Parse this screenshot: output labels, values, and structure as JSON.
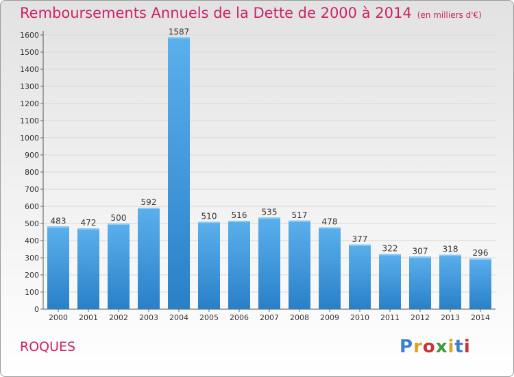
{
  "title": "Remboursements Annuels de la Dette de 2000 à 2014",
  "unit_note": "(en milliers d'€)",
  "commune": "ROQUES",
  "logo": {
    "text": "Proxiti",
    "colors": [
      "#3a7fd0",
      "#e0a020",
      "#cc3333",
      "#3a9a3a",
      "#e0a020",
      "#3a7fd0",
      "#cc3333"
    ]
  },
  "colors": {
    "title": "#cc2266",
    "bar_top": "#5ab0ec",
    "bar_bottom": "#2a80c8"
  },
  "chart_data": {
    "type": "bar",
    "categories": [
      "2000",
      "2001",
      "2002",
      "2003",
      "2004",
      "2005",
      "2006",
      "2007",
      "2008",
      "2009",
      "2010",
      "2011",
      "2012",
      "2013",
      "2014"
    ],
    "values": [
      483,
      472,
      500,
      592,
      1587,
      510,
      516,
      535,
      517,
      478,
      377,
      322,
      307,
      318,
      296
    ],
    "ylim": [
      0,
      1600
    ],
    "yticks": [
      0,
      100,
      200,
      300,
      400,
      500,
      600,
      700,
      800,
      900,
      1000,
      1100,
      1200,
      1300,
      1400,
      1500,
      1600
    ],
    "grid": true,
    "data_labels": true
  }
}
